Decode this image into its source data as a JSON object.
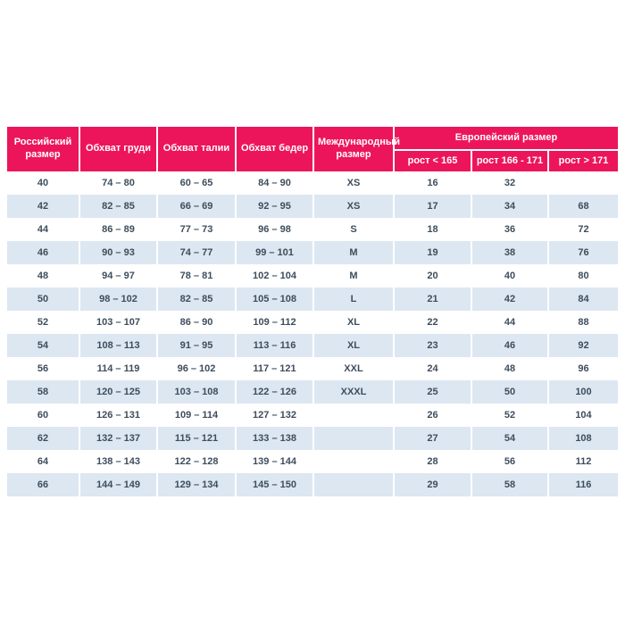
{
  "colors": {
    "header_bg": "#EC155B",
    "header_text": "#FFFFFF",
    "row_alt_bg": "#DCE7F2",
    "row_bg": "#FFFFFF",
    "text": "#3E4D5C"
  },
  "table": {
    "header": {
      "russian_size": "Российский размер",
      "chest": "Обхват груди",
      "waist": "Обхват талии",
      "hips": "Обхват бедер",
      "international": "Международный размер",
      "european_group": "Европейский размер",
      "height_lt": "рост < 165",
      "height_mid": "рост 166 - 171",
      "height_gt": "рост > 171"
    },
    "column_keys": [
      "russian-size",
      "chest",
      "waist",
      "hips",
      "international-size",
      "european-height-lt-165",
      "european-height-166-171",
      "european-height-gt-171"
    ]
  },
  "chart_data": {
    "type": "table",
    "columns": [
      "Российский размер",
      "Обхват груди",
      "Обхват талии",
      "Обхват бедер",
      "Международный размер",
      "Европейский размер: рост < 165",
      "Европейский размер: рост 166 - 171",
      "Европейский размер: рост > 171"
    ],
    "rows": [
      [
        "40",
        "74 – 80",
        "60 – 65",
        "84 – 90",
        "XS",
        "16",
        "32",
        ""
      ],
      [
        "42",
        "82 – 85",
        "66 – 69",
        "92 – 95",
        "XS",
        "17",
        "34",
        "68"
      ],
      [
        "44",
        "86 – 89",
        "77 – 73",
        "96 – 98",
        "S",
        "18",
        "36",
        "72"
      ],
      [
        "46",
        "90 – 93",
        "74 – 77",
        "99 – 101",
        "M",
        "19",
        "38",
        "76"
      ],
      [
        "48",
        "94 – 97",
        "78 – 81",
        "102 – 104",
        "M",
        "20",
        "40",
        "80"
      ],
      [
        "50",
        "98 – 102",
        "82 – 85",
        "105 – 108",
        "L",
        "21",
        "42",
        "84"
      ],
      [
        "52",
        "103 – 107",
        "86 – 90",
        "109 – 112",
        "XL",
        "22",
        "44",
        "88"
      ],
      [
        "54",
        "108 – 113",
        "91 – 95",
        "113 – 116",
        "XL",
        "23",
        "46",
        "92"
      ],
      [
        "56",
        "114 – 119",
        "96 – 102",
        "117 – 121",
        "XXL",
        "24",
        "48",
        "96"
      ],
      [
        "58",
        "120 – 125",
        "103 – 108",
        "122 – 126",
        "XXXL",
        "25",
        "50",
        "100"
      ],
      [
        "60",
        "126 – 131",
        "109 – 114",
        "127 – 132",
        "",
        "26",
        "52",
        "104"
      ],
      [
        "62",
        "132 – 137",
        "115 – 121",
        "133 – 138",
        "",
        "27",
        "54",
        "108"
      ],
      [
        "64",
        "138 – 143",
        "122 – 128",
        "139 – 144",
        "",
        "28",
        "56",
        "112"
      ],
      [
        "66",
        "144 – 149",
        "129 – 134",
        "145 – 150",
        "",
        "29",
        "58",
        "116"
      ]
    ]
  }
}
